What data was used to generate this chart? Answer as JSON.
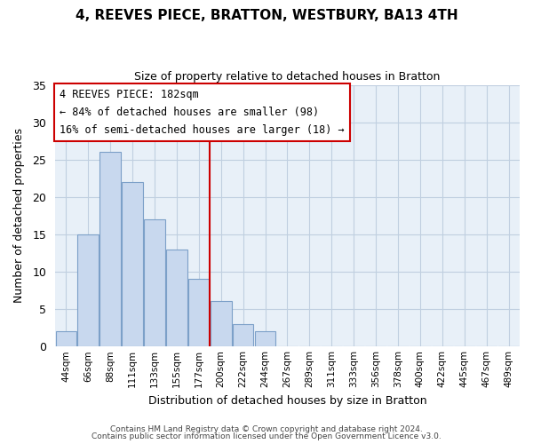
{
  "title": "4, REEVES PIECE, BRATTON, WESTBURY, BA13 4TH",
  "subtitle": "Size of property relative to detached houses in Bratton",
  "xlabel": "Distribution of detached houses by size in Bratton",
  "ylabel": "Number of detached properties",
  "bar_labels": [
    "44sqm",
    "66sqm",
    "88sqm",
    "111sqm",
    "133sqm",
    "155sqm",
    "177sqm",
    "200sqm",
    "222sqm",
    "244sqm",
    "267sqm",
    "289sqm",
    "311sqm",
    "333sqm",
    "356sqm",
    "378sqm",
    "400sqm",
    "422sqm",
    "445sqm",
    "467sqm",
    "489sqm"
  ],
  "bar_values": [
    2,
    15,
    26,
    22,
    17,
    13,
    9,
    6,
    3,
    2,
    0,
    0,
    0,
    0,
    0,
    0,
    0,
    0,
    0,
    0,
    0
  ],
  "bar_color": "#c8d8ee",
  "bar_edge_color": "#7ca0c8",
  "vline_x_index": 6,
  "vline_color": "#cc0000",
  "ylim": [
    0,
    35
  ],
  "annotation_title": "4 REEVES PIECE: 182sqm",
  "annotation_line1": "← 84% of detached houses are smaller (98)",
  "annotation_line2": "16% of semi-detached houses are larger (18) →",
  "annotation_box_color": "#ffffff",
  "annotation_box_edge": "#cc0000",
  "footer1": "Contains HM Land Registry data © Crown copyright and database right 2024.",
  "footer2": "Contains public sector information licensed under the Open Government Licence v3.0.",
  "background_color": "#ffffff",
  "plot_bg_color": "#e8f0f8",
  "grid_color": "#c0cfe0"
}
